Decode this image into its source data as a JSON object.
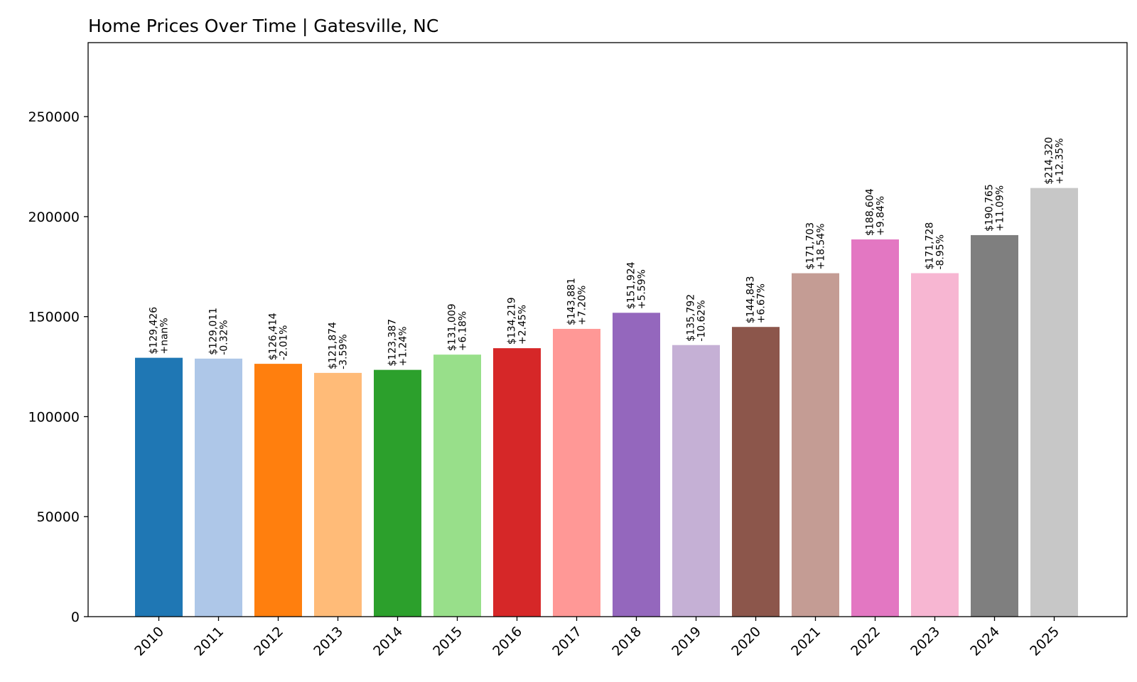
{
  "chart_data": {
    "type": "bar",
    "title": "Home Prices Over Time | Gatesville, NC",
    "xlabel": "",
    "ylabel": "",
    "ylim": [
      0,
      287000
    ],
    "yticks": [
      0,
      50000,
      100000,
      150000,
      200000,
      250000
    ],
    "ytick_labels": [
      "0",
      "50000",
      "100000",
      "150000",
      "200000",
      "250000"
    ],
    "grid": false,
    "legend": "none",
    "categories": [
      "2010",
      "2011",
      "2012",
      "2013",
      "2014",
      "2015",
      "2016",
      "2017",
      "2018",
      "2019",
      "2020",
      "2021",
      "2022",
      "2023",
      "2024",
      "2025"
    ],
    "values": [
      129426,
      129011,
      126414,
      121874,
      123387,
      131009,
      134219,
      143881,
      151924,
      135792,
      144843,
      171703,
      188604,
      171728,
      190765,
      214320
    ],
    "price_labels": [
      "$129,426",
      "$129,011",
      "$126,414",
      "$121,874",
      "$123,387",
      "$131,009",
      "$134,219",
      "$143,881",
      "$151,924",
      "$135,792",
      "$144,843",
      "$171,703",
      "$188,604",
      "$171,728",
      "$190,765",
      "$214,320"
    ],
    "change_labels": [
      "+nan%",
      "-0.32%",
      "-2.01%",
      "-3.59%",
      "+1.24%",
      "+6.18%",
      "+2.45%",
      "+7.20%",
      "+5.59%",
      "-10.62%",
      "+6.67%",
      "+18.54%",
      "+9.84%",
      "-8.95%",
      "+11.09%",
      "+12.35%"
    ],
    "colors": [
      "#1f77b4",
      "#aec7e8",
      "#ff7f0e",
      "#ffbb78",
      "#2ca02c",
      "#98df8a",
      "#d62728",
      "#ff9896",
      "#9467bd",
      "#c5b0d5",
      "#8c564b",
      "#c49c94",
      "#e377c2",
      "#f7b6d2",
      "#7f7f7f",
      "#c7c7c7"
    ]
  }
}
